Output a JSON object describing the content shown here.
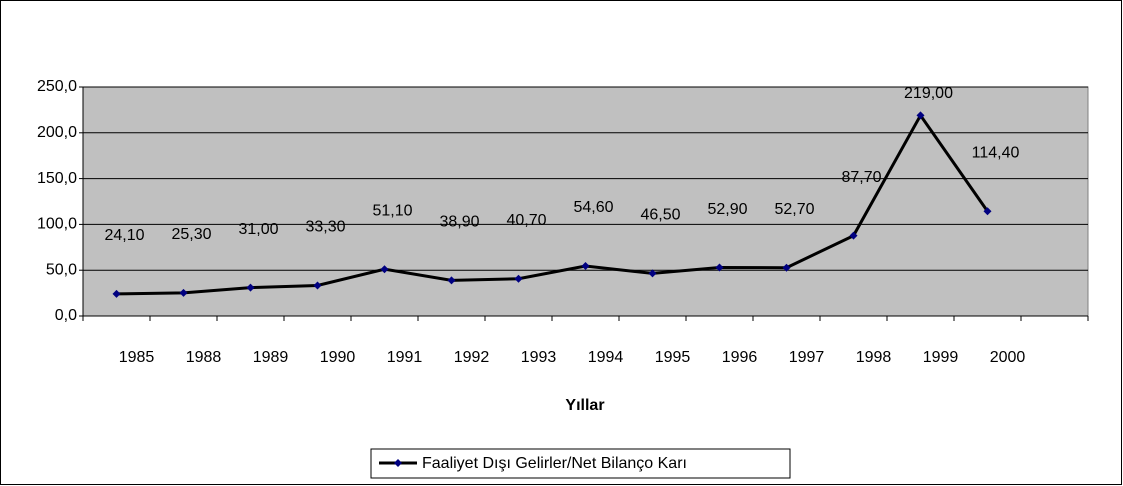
{
  "chart_data": {
    "type": "line",
    "x_label": "Yıllar",
    "categories": [
      "1985",
      "1988",
      "1989",
      "1990",
      "1991",
      "1992",
      "1993",
      "1994",
      "1995",
      "1996",
      "1997",
      "1998",
      "1999",
      "2000"
    ],
    "series": [
      {
        "name": "Faaliyet Dışı Gelirler/Net Bilanço Karı",
        "color": "#000000",
        "marker_color": "#000080",
        "values": [
          24.1,
          25.3,
          31.0,
          33.3,
          51.1,
          38.9,
          40.7,
          54.6,
          46.5,
          52.9,
          52.7,
          87.7,
          219.0,
          114.4
        ],
        "value_labels": [
          "24,10",
          "25,30",
          "31,00",
          "33,30",
          "51,10",
          "38,90",
          "40,70",
          "54,60",
          "46,50",
          "52,90",
          "52,70",
          "87,70",
          "219,00",
          "114,40"
        ]
      }
    ],
    "ylim": [
      0,
      250
    ],
    "yticks": [
      {
        "value": 0,
        "label": "0,0"
      },
      {
        "value": 50,
        "label": "50,0"
      },
      {
        "value": 100,
        "label": "100,0"
      },
      {
        "value": 150,
        "label": "150,0"
      },
      {
        "value": 200,
        "label": "200,0"
      },
      {
        "value": 250,
        "label": "250,0"
      }
    ],
    "grid": true,
    "legend": "bottom"
  }
}
